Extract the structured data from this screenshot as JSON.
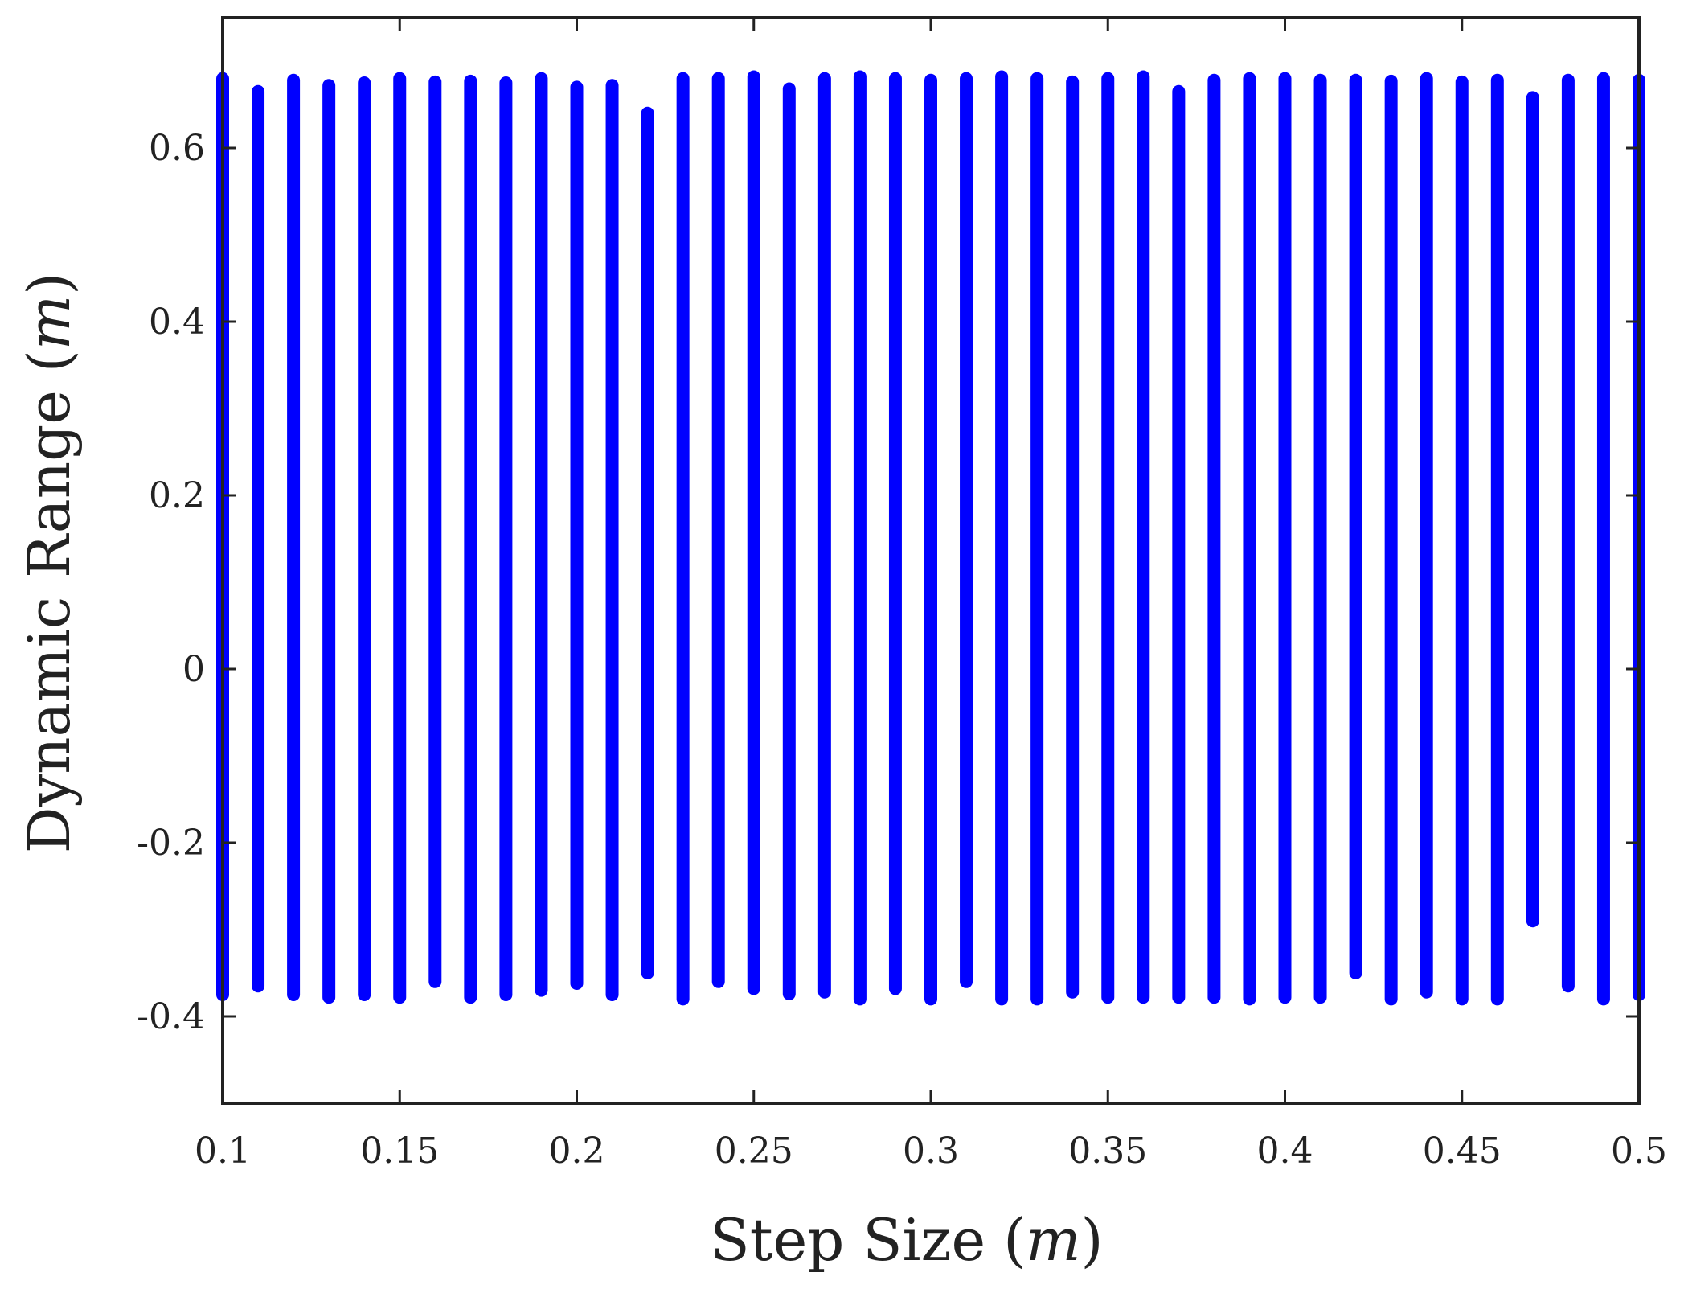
{
  "chart_data": {
    "type": "scatter",
    "title": "",
    "xlabel": "Step Size",
    "xlabel_unit": "m",
    "ylabel": "Dynamic Range",
    "ylabel_unit": "m",
    "xlim": [
      0.1,
      0.5
    ],
    "ylim": [
      -0.5,
      0.75
    ],
    "grid": false,
    "legend": "none",
    "marker_color": "#0000ff",
    "axis_color": "#222222",
    "xticks": [
      0.1,
      0.15,
      0.2,
      0.25,
      0.3,
      0.35,
      0.4,
      0.45,
      0.5
    ],
    "xtick_labels": [
      "0.1",
      "0.15",
      "0.2",
      "0.25",
      "0.3",
      "0.35",
      "0.4",
      "0.45",
      "0.5"
    ],
    "yticks": [
      0.6,
      0.4,
      0.2,
      0,
      -0.2,
      -0.4
    ],
    "ytick_labels": [
      "0.6",
      "0.4",
      "0.2",
      "0",
      "-0.2",
      "-0.4"
    ],
    "series": [
      {
        "x": [
          0.1,
          0.11,
          0.12,
          0.13,
          0.14,
          0.15,
          0.16,
          0.17,
          0.18,
          0.19,
          0.2,
          0.21,
          0.22,
          0.23,
          0.24,
          0.25,
          0.26,
          0.27,
          0.28,
          0.29,
          0.3,
          0.31,
          0.32,
          0.33,
          0.34,
          0.35,
          0.36,
          0.37,
          0.38,
          0.39,
          0.4,
          0.41,
          0.42,
          0.43,
          0.44,
          0.45,
          0.46,
          0.47,
          0.48,
          0.49,
          0.5
        ],
        "y_min": [
          -0.375,
          -0.365,
          -0.375,
          -0.378,
          -0.375,
          -0.378,
          -0.36,
          -0.378,
          -0.375,
          -0.37,
          -0.362,
          -0.375,
          -0.35,
          -0.38,
          -0.36,
          -0.368,
          -0.374,
          -0.372,
          -0.38,
          -0.368,
          -0.38,
          -0.36,
          -0.38,
          -0.38,
          -0.372,
          -0.378,
          -0.378,
          -0.378,
          -0.378,
          -0.38,
          -0.378,
          -0.378,
          -0.35,
          -0.38,
          -0.372,
          -0.38,
          -0.38,
          -0.29,
          -0.365,
          -0.38,
          -0.375
        ],
        "y_max": [
          0.68,
          0.665,
          0.678,
          0.672,
          0.675,
          0.68,
          0.676,
          0.677,
          0.675,
          0.68,
          0.67,
          0.672,
          0.64,
          0.68,
          0.68,
          0.682,
          0.668,
          0.68,
          0.682,
          0.68,
          0.678,
          0.68,
          0.682,
          0.68,
          0.676,
          0.68,
          0.682,
          0.665,
          0.678,
          0.68,
          0.68,
          0.678,
          0.678,
          0.677,
          0.68,
          0.676,
          0.678,
          0.658,
          0.678,
          0.68,
          0.678
        ]
      }
    ]
  }
}
